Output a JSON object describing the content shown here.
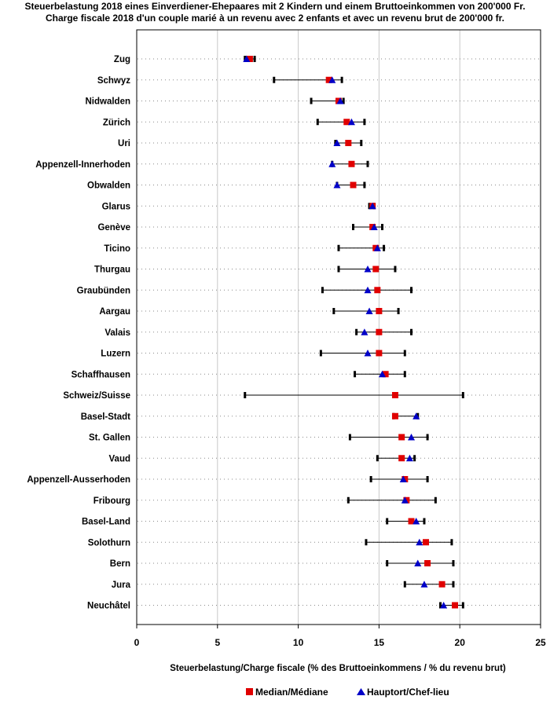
{
  "chart_data": {
    "type": "range-dot",
    "title_line1": "Steuerbelastung 2018 eines Einverdiener-Ehepaares mit 2 Kindern und einem Bruttoeinkommen von 200'000 Fr.",
    "title_line2": "Charge fiscale 2018 d'un couple marié à un revenu avec 2 enfants et avec un revenu brut de 200'000 fr.",
    "xlabel": "Steuerbelastung/Charge fiscale (% des Bruttoeinkommens / % du revenu brut)",
    "ylabel": "",
    "xlim": [
      0,
      25
    ],
    "xticks": [
      0,
      5,
      10,
      15,
      20,
      25
    ],
    "grid": "vertical",
    "legend_position": "bottom",
    "colors": {
      "median": "#e00000",
      "hauptort": "#0000c8",
      "range": "#000000"
    },
    "series": [
      {
        "name": "Median/Médiane",
        "marker": "square",
        "color": "#e00000"
      },
      {
        "name": "Hauptort/Chef-lieu",
        "marker": "triangle",
        "color": "#0000c8"
      }
    ],
    "categories": [
      "Zug",
      "Schwyz",
      "Nidwalden",
      "Zürich",
      "Uri",
      "Appenzell-Innerhoden",
      "Obwalden",
      "Glarus",
      "Genève",
      "Ticino",
      "Thurgau",
      "Graubünden",
      "Aargau",
      "Valais",
      "Luzern",
      "Schaffhausen",
      "Schweiz/Suisse",
      "Basel-Stadt",
      "St. Gallen",
      "Vaud",
      "Appenzell-Ausserhoden",
      "Fribourg",
      "Basel-Land",
      "Solothurn",
      "Bern",
      "Jura",
      "Neuchâtel"
    ],
    "min": [
      6.7,
      8.5,
      10.8,
      11.2,
      12.3,
      12.1,
      12.4,
      14.4,
      13.4,
      12.5,
      12.5,
      11.5,
      12.2,
      13.6,
      11.4,
      13.5,
      6.7,
      15.9,
      13.2,
      14.9,
      14.5,
      13.1,
      15.5,
      14.2,
      15.5,
      16.6,
      18.8
    ],
    "max": [
      7.3,
      12.7,
      12.8,
      14.1,
      13.9,
      14.3,
      14.1,
      14.7,
      15.2,
      15.3,
      16.0,
      17.0,
      16.2,
      17.0,
      16.6,
      16.6,
      20.2,
      17.4,
      18.0,
      17.2,
      18.0,
      18.5,
      17.8,
      19.5,
      19.6,
      19.6,
      20.2
    ],
    "median": [
      7.0,
      11.9,
      12.5,
      13.0,
      13.1,
      13.3,
      13.4,
      14.6,
      14.6,
      14.8,
      14.8,
      14.9,
      15.0,
      15.0,
      15.0,
      15.4,
      16.0,
      16.0,
      16.4,
      16.4,
      16.6,
      16.7,
      17.0,
      17.9,
      18.0,
      18.9,
      19.7
    ],
    "hauptort": [
      6.8,
      12.1,
      12.6,
      13.3,
      12.4,
      12.1,
      12.4,
      14.6,
      14.7,
      14.9,
      14.3,
      14.3,
      14.4,
      14.1,
      14.3,
      15.2,
      null,
      17.3,
      17.0,
      16.9,
      16.5,
      16.6,
      17.3,
      17.5,
      17.4,
      17.8,
      19.0
    ]
  }
}
